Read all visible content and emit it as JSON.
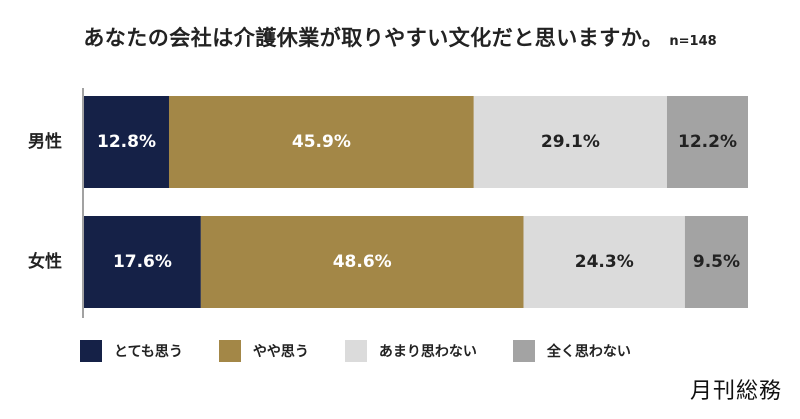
{
  "title": "あなたの会社は介護休業が取りやすい文化だと思いますか。",
  "sample_size": "n=148",
  "brand": "月刊総務",
  "colors": {
    "very": "#152147",
    "somewhat": "#a38747",
    "not_much": "#dbdbdb",
    "not_at_all": "#a3a3a3",
    "text_light": "#ffffff",
    "text_dark": "#222222"
  },
  "chart_data": {
    "type": "bar",
    "orientation": "horizontal-stacked-100",
    "title": "あなたの会社は介護休業が取りやすい文化だと思いますか。",
    "categories": [
      "男性",
      "女性"
    ],
    "series": [
      {
        "name": "とても思う",
        "values": [
          12.8,
          17.6
        ],
        "color": "#152147",
        "label_color": "#ffffff"
      },
      {
        "name": "やや思う",
        "values": [
          45.9,
          48.6
        ],
        "color": "#a38747",
        "label_color": "#ffffff"
      },
      {
        "name": "あまり思わない",
        "values": [
          29.1,
          24.3
        ],
        "color": "#dbdbdb",
        "label_color": "#222222"
      },
      {
        "name": "全く思わない",
        "values": [
          12.2,
          9.5
        ],
        "color": "#a3a3a3",
        "label_color": "#222222"
      }
    ],
    "unit": "%",
    "xlim": [
      0,
      100
    ],
    "grid": false,
    "legend": "bottom"
  }
}
